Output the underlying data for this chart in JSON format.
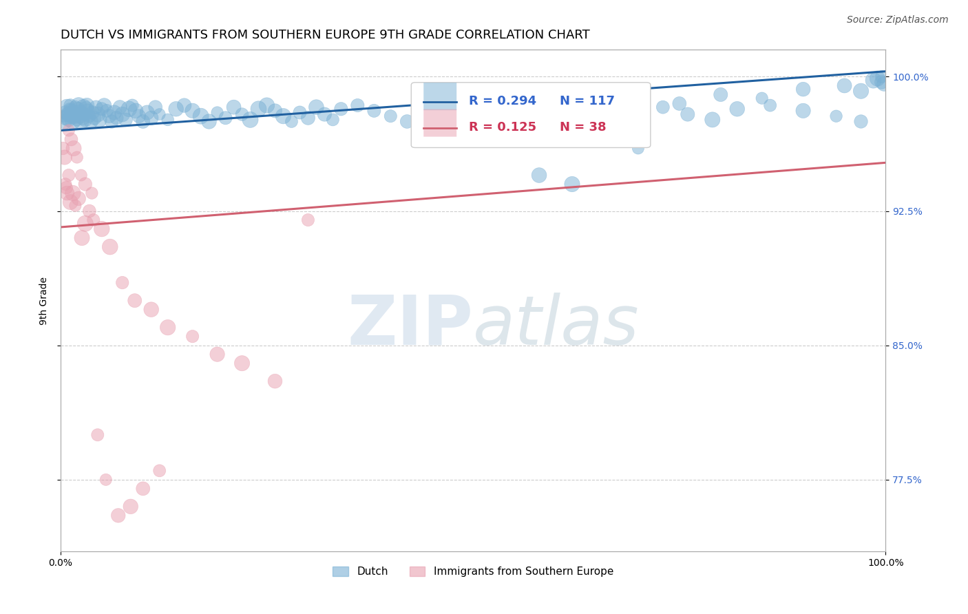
{
  "title": "DUTCH VS IMMIGRANTS FROM SOUTHERN EUROPE 9TH GRADE CORRELATION CHART",
  "source": "Source: ZipAtlas.com",
  "xlabel": "",
  "ylabel": "9th Grade",
  "xlim": [
    0.0,
    1.0
  ],
  "ylim": [
    0.735,
    1.015
  ],
  "yticks": [
    0.775,
    0.85,
    0.925,
    1.0
  ],
  "ytick_labels": [
    "77.5%",
    "85.0%",
    "92.5%",
    "100.0%"
  ],
  "xticks": [
    0.0,
    1.0
  ],
  "xtick_labels": [
    "0.0%",
    "100.0%"
  ],
  "legend_blue_r": "R = 0.294",
  "legend_blue_n": "N = 117",
  "legend_pink_r": "R = 0.125",
  "legend_pink_n": "N = 38",
  "legend_blue_label": "Dutch",
  "legend_pink_label": "Immigrants from Southern Europe",
  "blue_color": "#7ab0d4",
  "blue_line_color": "#2060a0",
  "pink_color": "#e8a0b0",
  "pink_line_color": "#d06070",
  "watermark_zip": "ZIP",
  "watermark_atlas": "atlas",
  "background_color": "#ffffff",
  "grid_color": "#cccccc",
  "blue_scatter_x": [
    0.003,
    0.005,
    0.006,
    0.007,
    0.008,
    0.009,
    0.01,
    0.011,
    0.012,
    0.013,
    0.014,
    0.015,
    0.016,
    0.017,
    0.018,
    0.019,
    0.02,
    0.021,
    0.022,
    0.023,
    0.024,
    0.025,
    0.026,
    0.027,
    0.028,
    0.029,
    0.03,
    0.031,
    0.032,
    0.033,
    0.035,
    0.037,
    0.039,
    0.041,
    0.043,
    0.045,
    0.047,
    0.05,
    0.053,
    0.056,
    0.059,
    0.062,
    0.065,
    0.068,
    0.072,
    0.075,
    0.079,
    0.083,
    0.087,
    0.091,
    0.095,
    0.1,
    0.105,
    0.11,
    0.115,
    0.12,
    0.13,
    0.14,
    0.15,
    0.16,
    0.17,
    0.18,
    0.19,
    0.2,
    0.21,
    0.22,
    0.23,
    0.24,
    0.25,
    0.26,
    0.27,
    0.28,
    0.29,
    0.3,
    0.31,
    0.32,
    0.33,
    0.34,
    0.36,
    0.38,
    0.4,
    0.42,
    0.44,
    0.46,
    0.48,
    0.5,
    0.52,
    0.54,
    0.56,
    0.58,
    0.61,
    0.64,
    0.67,
    0.7,
    0.73,
    0.76,
    0.79,
    0.82,
    0.86,
    0.9,
    0.94,
    0.97,
    0.99,
    0.995,
    0.998,
    0.58,
    0.62,
    0.66,
    0.7,
    0.75,
    0.8,
    0.85,
    0.9,
    0.95,
    0.97,
    0.985,
    0.995
  ],
  "blue_scatter_y": [
    0.978,
    0.975,
    0.98,
    0.977,
    0.983,
    0.979,
    0.976,
    0.982,
    0.984,
    0.981,
    0.978,
    0.975,
    0.98,
    0.977,
    0.983,
    0.979,
    0.976,
    0.982,
    0.984,
    0.981,
    0.978,
    0.975,
    0.98,
    0.977,
    0.983,
    0.979,
    0.976,
    0.982,
    0.984,
    0.981,
    0.978,
    0.975,
    0.98,
    0.977,
    0.983,
    0.979,
    0.976,
    0.982,
    0.984,
    0.981,
    0.978,
    0.975,
    0.98,
    0.977,
    0.983,
    0.979,
    0.976,
    0.982,
    0.984,
    0.981,
    0.978,
    0.975,
    0.98,
    0.977,
    0.983,
    0.979,
    0.976,
    0.982,
    0.984,
    0.981,
    0.978,
    0.975,
    0.98,
    0.977,
    0.983,
    0.979,
    0.976,
    0.982,
    0.984,
    0.981,
    0.978,
    0.975,
    0.98,
    0.977,
    0.983,
    0.979,
    0.976,
    0.982,
    0.984,
    0.981,
    0.978,
    0.975,
    0.98,
    0.977,
    0.983,
    0.979,
    0.976,
    0.982,
    0.984,
    0.981,
    0.978,
    0.975,
    0.98,
    0.977,
    0.983,
    0.979,
    0.976,
    0.982,
    0.984,
    0.981,
    0.978,
    0.975,
    0.999,
    0.997,
    0.996,
    0.945,
    0.94,
    0.97,
    0.96,
    0.985,
    0.99,
    0.988,
    0.993,
    0.995,
    0.992,
    0.998,
    1.0
  ],
  "pink_scatter_x": [
    0.003,
    0.005,
    0.006,
    0.007,
    0.008,
    0.01,
    0.012,
    0.015,
    0.018,
    0.022,
    0.026,
    0.03,
    0.035,
    0.04,
    0.05,
    0.06,
    0.075,
    0.09,
    0.11,
    0.13,
    0.16,
    0.19,
    0.22,
    0.26,
    0.3,
    0.01,
    0.013,
    0.016,
    0.02,
    0.025,
    0.03,
    0.038,
    0.045,
    0.055,
    0.07,
    0.085,
    0.1,
    0.12
  ],
  "pink_scatter_y": [
    0.96,
    0.955,
    0.94,
    0.938,
    0.935,
    0.945,
    0.93,
    0.935,
    0.928,
    0.932,
    0.91,
    0.918,
    0.925,
    0.92,
    0.915,
    0.905,
    0.885,
    0.875,
    0.87,
    0.86,
    0.855,
    0.845,
    0.84,
    0.83,
    0.92,
    0.97,
    0.965,
    0.96,
    0.955,
    0.945,
    0.94,
    0.935,
    0.8,
    0.775,
    0.755,
    0.76,
    0.77,
    0.78
  ],
  "blue_line_x0": 0.0,
  "blue_line_x1": 1.0,
  "blue_line_y0": 0.97,
  "blue_line_y1": 1.003,
  "pink_line_x0": 0.0,
  "pink_line_x1": 1.0,
  "pink_line_y0": 0.916,
  "pink_line_y1": 0.952,
  "dot_size": 200,
  "dot_alpha": 0.5,
  "title_fontsize": 13,
  "axis_label_fontsize": 10,
  "tick_fontsize": 10,
  "legend_fontsize": 12,
  "source_fontsize": 10
}
